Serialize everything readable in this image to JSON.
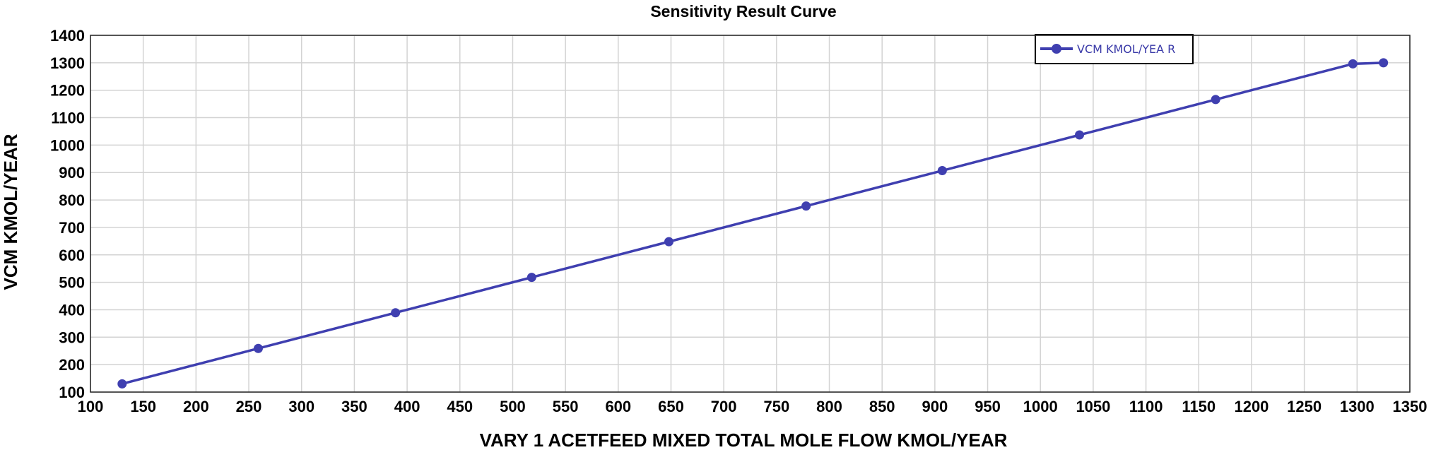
{
  "chart_data": {
    "type": "line",
    "title": "Sensitivity Result Curve",
    "xlabel": "VARY 1 ACETFEED MIXED TOTAL MOLE FLOW KMOL/YEAR",
    "ylabel": "VCM KMOL/YEAR",
    "xlim": [
      100,
      1350
    ],
    "ylim": [
      100,
      1400
    ],
    "xticks": [
      100,
      150,
      200,
      250,
      300,
      350,
      400,
      450,
      500,
      550,
      600,
      650,
      700,
      750,
      800,
      850,
      900,
      950,
      1000,
      1050,
      1100,
      1150,
      1200,
      1250,
      1300,
      1350
    ],
    "yticks": [
      100,
      200,
      300,
      400,
      500,
      600,
      700,
      800,
      900,
      1000,
      1100,
      1200,
      1300,
      1400
    ],
    "grid": true,
    "legend_position": "top-right",
    "series": [
      {
        "name": "VCM KMOL/YEA R",
        "color": "#3f3fb0",
        "marker": "circle",
        "x": [
          130,
          259,
          389,
          518,
          648,
          778,
          907,
          1037,
          1166,
          1296,
          1325
        ],
        "y": [
          130,
          259,
          389,
          518,
          648,
          778,
          907,
          1037,
          1166,
          1296,
          1300
        ]
      }
    ]
  }
}
